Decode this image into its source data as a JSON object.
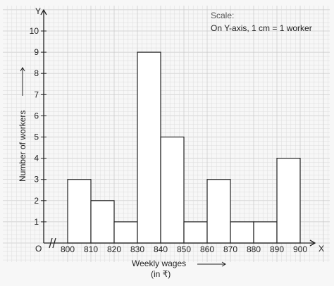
{
  "chart_data": {
    "type": "bar",
    "histogram": true,
    "x_bins": [
      [
        800,
        810
      ],
      [
        810,
        820
      ],
      [
        820,
        830
      ],
      [
        830,
        840
      ],
      [
        840,
        850
      ],
      [
        850,
        860
      ],
      [
        860,
        870
      ],
      [
        870,
        880
      ],
      [
        880,
        890
      ],
      [
        890,
        900
      ]
    ],
    "values": [
      3,
      2,
      1,
      9,
      5,
      1,
      3,
      1,
      1,
      4
    ],
    "x_ticks": [
      "800",
      "810",
      "820",
      "830",
      "840",
      "850",
      "860",
      "870",
      "880",
      "890",
      "900"
    ],
    "y_ticks": [
      "1",
      "2",
      "3",
      "4",
      "5",
      "6",
      "7",
      "8",
      "9",
      "10"
    ],
    "xlim": [
      800,
      900
    ],
    "ylim": [
      0,
      10
    ],
    "origin_label": "O",
    "x_axis_letter": "X",
    "y_axis_letter": "Y",
    "xlabel_line1": "Weekly wages",
    "xlabel_line2": "(in ₹)",
    "ylabel": "Number of workers",
    "scale_title": "Scale:",
    "scale_text": "On Y-axis, 1 cm = 1 worker",
    "grid": true,
    "axis_break_on_x": true
  }
}
